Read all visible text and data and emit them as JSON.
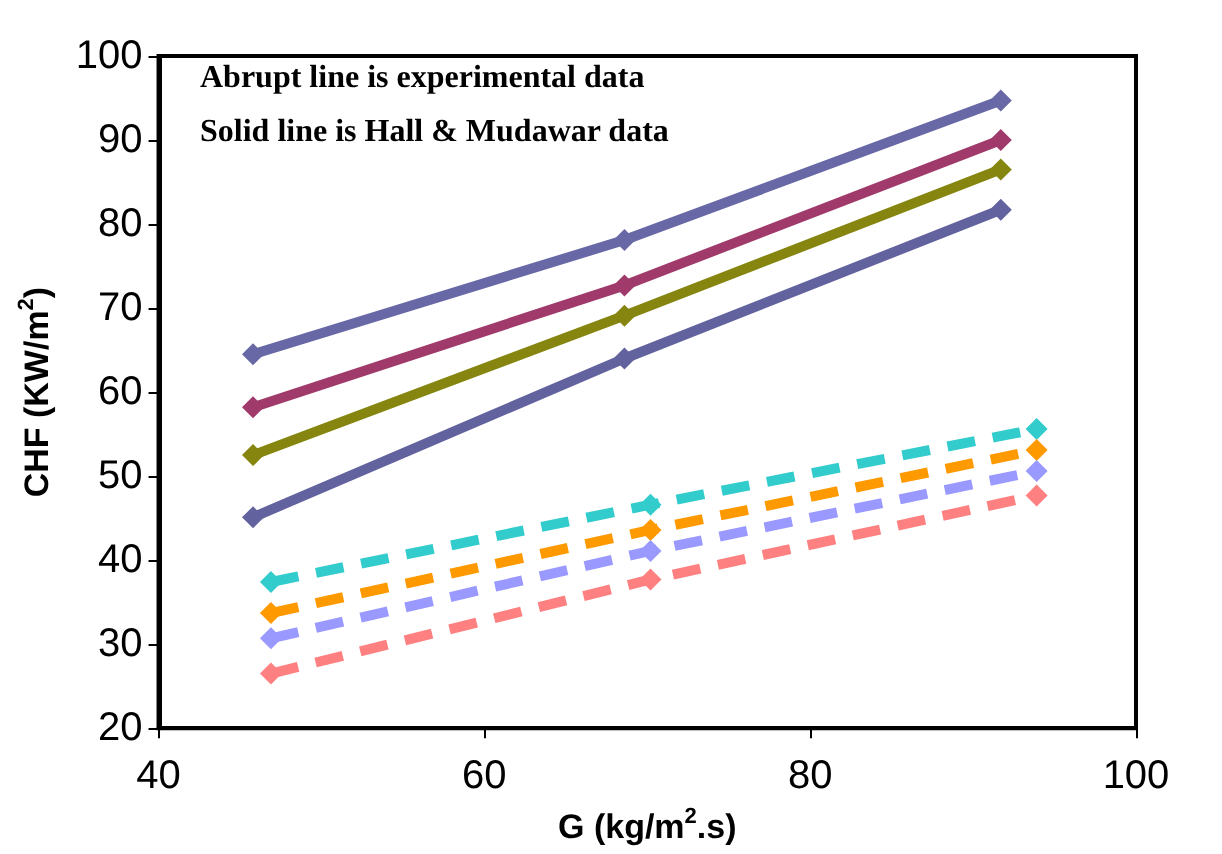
{
  "chart_data": {
    "type": "line",
    "xlabel": "G (kg/m$^{2}$.s)",
    "ylabel": "CHF (KW/m$^{2}$)",
    "annotations": [
      "Abrupt line is experimental data",
      "Solid line is Hall & Mudawar data"
    ],
    "xlim": [
      40,
      100
    ],
    "xticks": [
      40,
      60,
      80,
      100
    ],
    "ylim": [
      20,
      100
    ],
    "yticks": [
      20,
      30,
      40,
      50,
      60,
      70,
      80,
      90,
      100
    ],
    "grid": false,
    "marker": "diamond",
    "series": [
      {
        "color": "#6868a6",
        "line_style": "solid",
        "x": [
          45.8,
          68.6,
          91.7
        ],
        "values": [
          64.5,
          78.1,
          94.7
        ]
      },
      {
        "color": "#a03a6a",
        "line_style": "solid",
        "x": [
          45.8,
          68.6,
          91.7
        ],
        "values": [
          58.2,
          72.7,
          90.0
        ]
      },
      {
        "color": "#858510",
        "line_style": "solid",
        "x": [
          45.8,
          68.6,
          91.7
        ],
        "values": [
          52.5,
          69.1,
          86.5
        ]
      },
      {
        "color": "#62629e",
        "line_style": "solid",
        "x": [
          45.8,
          68.6,
          91.7
        ],
        "values": [
          45.1,
          64.0,
          81.7
        ]
      },
      {
        "color": "#33cccc",
        "line_style": "dashed",
        "x": [
          46.9,
          70.2,
          93.9
        ],
        "values": [
          37.4,
          46.6,
          55.6
        ]
      },
      {
        "color": "#ff9900",
        "line_style": "dashed",
        "x": [
          46.9,
          70.2,
          93.9
        ],
        "values": [
          33.7,
          43.6,
          53.1
        ]
      },
      {
        "color": "#9999ff",
        "line_style": "dashed",
        "x": [
          46.9,
          70.2,
          93.9
        ],
        "values": [
          30.7,
          41.1,
          50.6
        ]
      },
      {
        "color": "#ff8080",
        "line_style": "dashed",
        "x": [
          46.9,
          70.2,
          93.9
        ],
        "values": [
          26.5,
          37.7,
          47.7
        ]
      }
    ]
  }
}
